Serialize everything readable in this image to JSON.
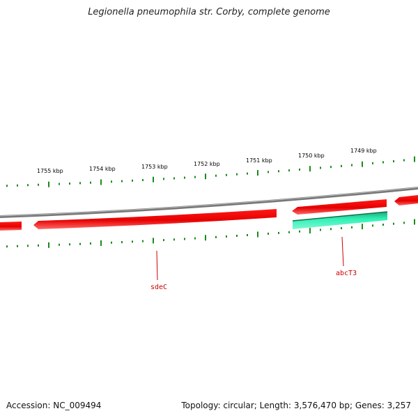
{
  "title": "Legionella pneumophila str. Corby, complete genome",
  "footer": {
    "accession": "Accession: NC_009494",
    "summary": "Topology: circular; Length: 3,576,470 bp; Genes: 3,257"
  },
  "ruler": {
    "labels": [
      "1755 kbp",
      "1754 kbp",
      "1753 kbp",
      "1752 kbp",
      "1751 kbp",
      "1750 kbp",
      "1749 kbp"
    ]
  },
  "genes": [
    {
      "name": "sdeC",
      "strand": "reverse"
    },
    {
      "name": "abcT3",
      "strand": "reverse"
    }
  ],
  "colors": {
    "gene_forward": "#ee0000",
    "gene_rna": "#22e6a8",
    "tick": "#1a8a1a",
    "backbone": "#888888",
    "gene_label": "#cc0000"
  }
}
